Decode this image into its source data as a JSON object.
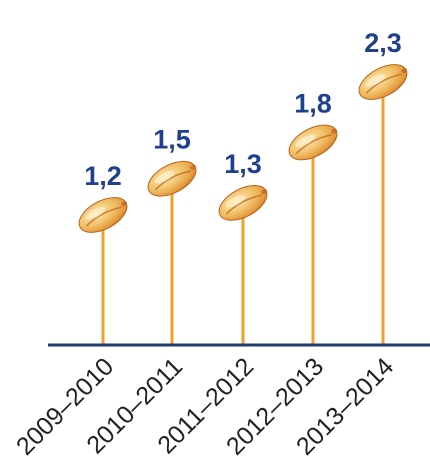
{
  "chart_data": {
    "type": "bar",
    "categories": [
      "2009–2010",
      "2010–2011",
      "2011–2012",
      "2012–2013",
      "2013–2014"
    ],
    "values": [
      1.2,
      1.5,
      1.3,
      1.8,
      2.3
    ],
    "value_labels": [
      "1,2",
      "1,5",
      "1,3",
      "1,8",
      "2,3"
    ],
    "title": "",
    "xlabel": "",
    "ylabel": "",
    "ylim": [
      0,
      2.3
    ],
    "grid": false,
    "legend": "none",
    "marker": "wheat-grain-icon",
    "colors": {
      "stem": "#f0a12a",
      "baseline": "#1f3a6e",
      "value_label": "#1f3f8f",
      "tick_label": "#222222",
      "grain_light": "#f6d48a",
      "grain_mid": "#e6a545",
      "grain_dark": "#b8641c"
    }
  }
}
